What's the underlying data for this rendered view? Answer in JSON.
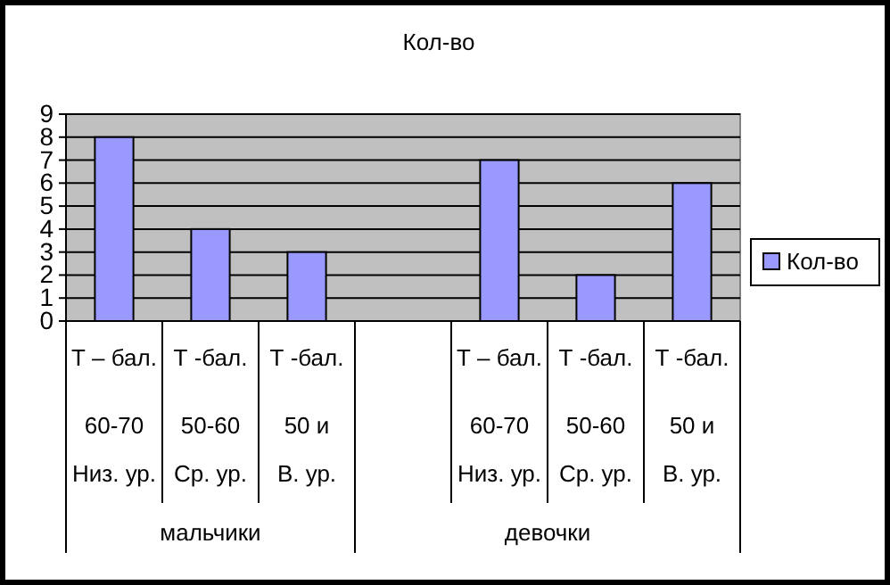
{
  "chart_data": {
    "type": "bar",
    "title": "Кол-во",
    "categories": [
      "Т – бал.\n60-70\nНиз. ур.",
      "Т -бал.\n50-60\nСр. ур.",
      "Т -бал.\n50 и\nВ. ур.",
      null,
      "Т – бал.\n60-70\nНиз. ур.",
      "Т -бал.\n50-60\nСр. ур.",
      "Т -бал.\n50 и\nВ. ур."
    ],
    "series": [
      {
        "name": "Кол-во",
        "color": "#9999ff",
        "values": [
          8,
          4,
          3,
          null,
          7,
          2,
          6
        ]
      }
    ],
    "ylim": [
      0,
      9
    ],
    "yticks": [
      0,
      1,
      2,
      3,
      4,
      5,
      6,
      7,
      8,
      9
    ],
    "grid": "y",
    "legend": "right",
    "annotations": [
      "мальчики",
      "девочки"
    ]
  }
}
